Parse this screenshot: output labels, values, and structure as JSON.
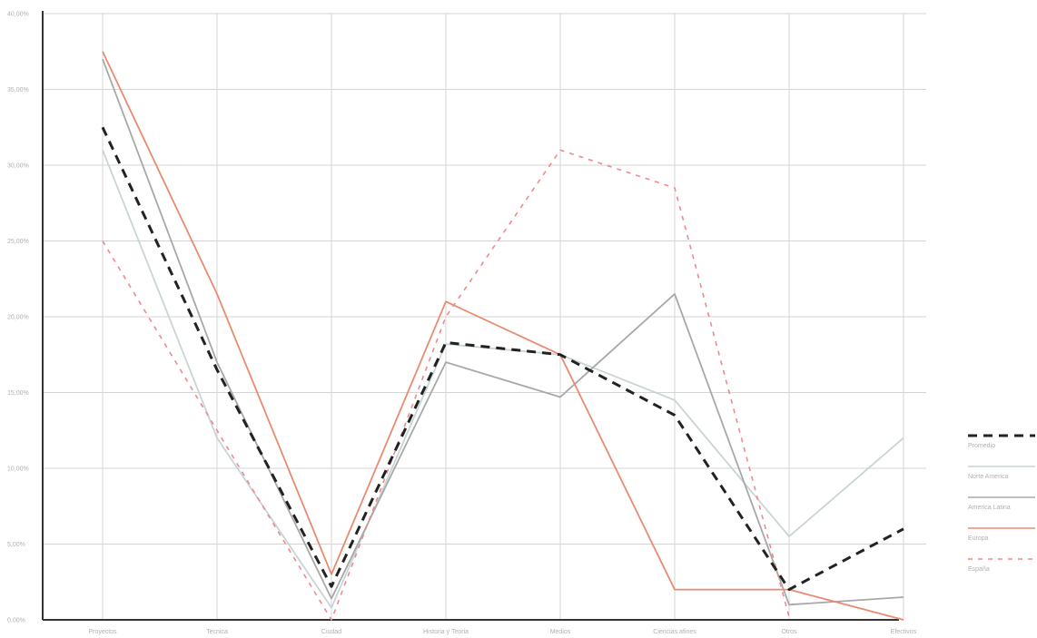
{
  "chart_data": {
    "type": "line",
    "title": "",
    "xlabel": "",
    "ylabel": "",
    "categories": [
      "Proyectos",
      "Tecnica",
      "Ciudad",
      "Historia y Teoria",
      "Medios",
      "Ciencias afines",
      "Otros",
      "Efectivos"
    ],
    "y_ticks": [
      "0,00%",
      "5,00%",
      "10,00%",
      "15,00%",
      "20,00%",
      "25,00%",
      "30,00%",
      "35,00%",
      "40,00%"
    ],
    "ylim": [
      0,
      40
    ],
    "grid": true,
    "legend_position": "right",
    "series": [
      {
        "name": "Promedio",
        "color": "#222222",
        "style": "dashed",
        "values": [
          32.5,
          16.5,
          2.2,
          18.3,
          17.5,
          13.5,
          2.0,
          6.0
        ]
      },
      {
        "name": "Norte America",
        "color": "#c9d4d7",
        "style": "solid",
        "values": [
          31.0,
          12.0,
          0.8,
          18.2,
          17.5,
          14.5,
          5.5,
          12.0
        ]
      },
      {
        "name": "America Latina",
        "color": "#a8a8a8",
        "style": "solid",
        "values": [
          37.0,
          17.0,
          1.4,
          17.0,
          14.7,
          21.5,
          1.0,
          1.5
        ]
      },
      {
        "name": "Europa",
        "color": "#e98b70",
        "style": "solid",
        "values": [
          37.5,
          21.5,
          3.0,
          21.0,
          17.5,
          2.0,
          2.0,
          0.0
        ]
      },
      {
        "name": "España",
        "color": "#ee8a8e",
        "style": "dotted",
        "values": [
          25.0,
          12.5,
          0.0,
          20.0,
          31.0,
          28.5,
          0.2,
          null
        ]
      }
    ]
  }
}
